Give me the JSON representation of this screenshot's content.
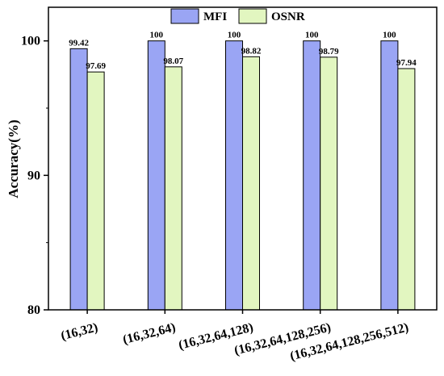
{
  "chart_data": {
    "type": "bar",
    "title": "",
    "xlabel": "",
    "ylabel": "Accuracy(%)",
    "ylim": [
      80,
      102.5
    ],
    "yticks": [
      80,
      90,
      100
    ],
    "grid": false,
    "legend_position": "top-center",
    "categories": [
      "(16,32)",
      "(16,32,64)",
      "(16,32,64,128)",
      "(16,32,64,128,256)",
      "(16,32,64,128,256,512)"
    ],
    "series": [
      {
        "name": "MFI",
        "color": "#9aa5f4",
        "values": [
          99.42,
          100,
          100,
          100,
          100
        ],
        "labels": [
          "99.42",
          "100",
          "100",
          "100",
          "100"
        ]
      },
      {
        "name": "OSNR",
        "color": "#e2f6c0",
        "values": [
          97.69,
          98.07,
          98.82,
          98.79,
          97.94
        ],
        "labels": [
          "97.69",
          "98.07",
          "98.82",
          "98.79",
          "97.94"
        ]
      }
    ]
  }
}
